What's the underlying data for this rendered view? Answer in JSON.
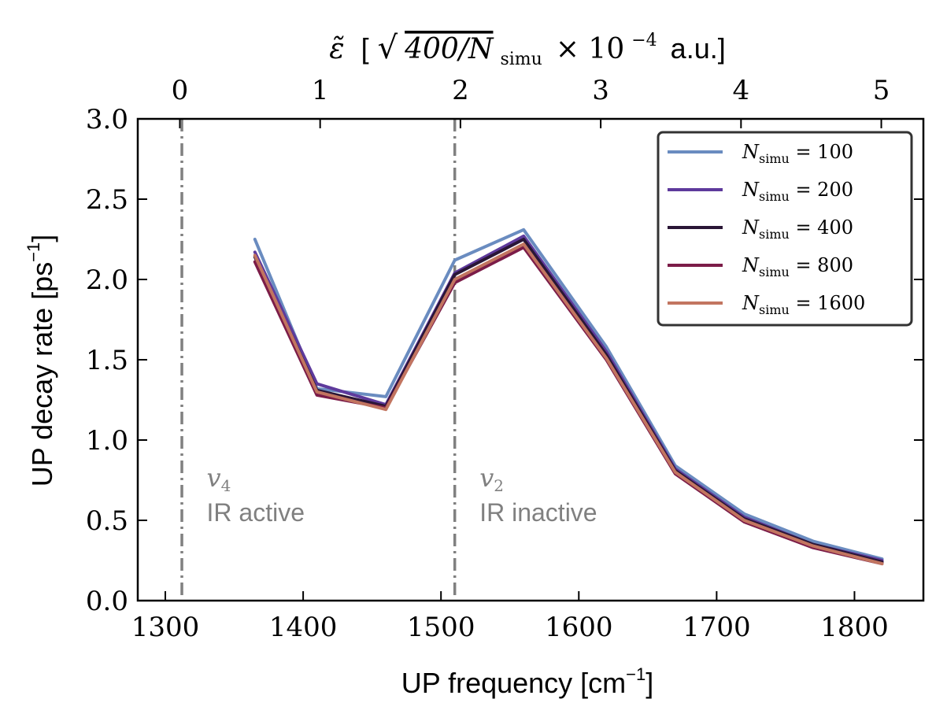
{
  "chart_data": {
    "type": "line",
    "xlabel": "UP frequency [cm",
    "xlabel_sup": "−1",
    "xlabel_end": "]",
    "ylabel": "UP decay rate [ps",
    "ylabel_sup": "−1",
    "ylabel_end": "]",
    "top_xlabel": {
      "symbol": "ε̃",
      "open": "[",
      "sqrt_expr": "400/N",
      "sqrt_sub": "simu",
      "times": "× 10",
      "exp": "−4",
      "unit": "a.u.]"
    },
    "xlim": [
      1280,
      1850
    ],
    "ylim": [
      0.0,
      3.0
    ],
    "top_xlim": [
      -0.3,
      5.3
    ],
    "xticks": [
      1300,
      1400,
      1500,
      1600,
      1700,
      1800
    ],
    "xtick_labels": [
      "1300",
      "1400",
      "1500",
      "1600",
      "1700",
      "1800"
    ],
    "yticks": [
      0.0,
      0.5,
      1.0,
      1.5,
      2.0,
      2.5,
      3.0
    ],
    "ytick_labels": [
      "0.0",
      "0.5",
      "1.0",
      "1.5",
      "2.0",
      "2.5",
      "3.0"
    ],
    "top_xticks": [
      0,
      1,
      2,
      3,
      4,
      5
    ],
    "top_xtick_labels": [
      "0",
      "1",
      "2",
      "3",
      "4",
      "5"
    ],
    "grid": false,
    "legend_position": "top-right",
    "x": [
      1365,
      1410,
      1460,
      1510,
      1560,
      1620,
      1670,
      1720,
      1770,
      1820
    ],
    "series": [
      {
        "name": "N",
        "name_sub": "simu",
        "name_val": " = 100",
        "color": "#6a8cc0",
        "values": [
          2.25,
          1.32,
          1.27,
          2.12,
          2.31,
          1.58,
          0.84,
          0.54,
          0.37,
          0.26
        ]
      },
      {
        "name": "N",
        "name_sub": "simu",
        "name_val": " = 200",
        "color": "#5e3a9c",
        "values": [
          2.17,
          1.35,
          1.22,
          2.04,
          2.27,
          1.55,
          0.82,
          0.52,
          0.35,
          0.25
        ]
      },
      {
        "name": "N",
        "name_sub": "simu",
        "name_val": " = 400",
        "color": "#2a1636",
        "values": [
          2.14,
          1.31,
          1.21,
          2.03,
          2.25,
          1.53,
          0.81,
          0.51,
          0.35,
          0.24
        ]
      },
      {
        "name": "N",
        "name_sub": "simu",
        "name_val": " = 800",
        "color": "#7b1c48",
        "values": [
          2.11,
          1.28,
          1.2,
          1.98,
          2.2,
          1.5,
          0.79,
          0.49,
          0.33,
          0.23
        ]
      },
      {
        "name": "N",
        "name_sub": "simu",
        "name_val": " = 1600",
        "color": "#c27560",
        "values": [
          2.15,
          1.3,
          1.19,
          2.0,
          2.22,
          1.51,
          0.8,
          0.5,
          0.34,
          0.23
        ]
      }
    ],
    "vlines": [
      {
        "x": 1312,
        "color": "#808080"
      },
      {
        "x": 1510,
        "color": "#808080"
      }
    ],
    "annotations": [
      {
        "id": "v4",
        "x": 1330,
        "mode_symbol": "v",
        "mode_sub": "4",
        "text": "IR active"
      },
      {
        "id": "v2",
        "x": 1528,
        "mode_symbol": "v",
        "mode_sub": "2",
        "text": "IR inactive"
      }
    ],
    "colors": {
      "axis": "#000000",
      "annotation": "#808080",
      "legend_border": "#333333"
    }
  }
}
